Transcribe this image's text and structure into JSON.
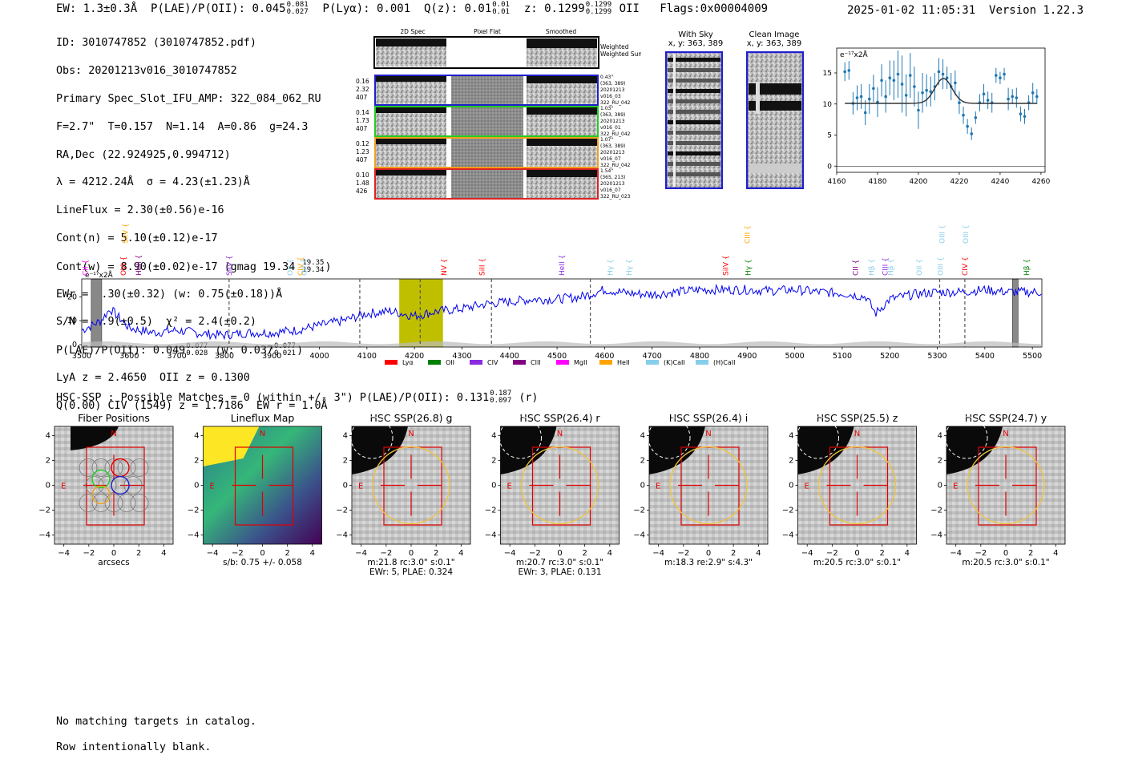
{
  "header": {
    "ew": "EW: 1.3±0.3Å",
    "plae_label": "P(LAE)/P(OII): 0.045",
    "plae_hi": "0.081",
    "plae_lo": "0.027",
    "plya": "P(Lyα): 0.001",
    "qz_label": "Q(z): 0.01",
    "qz_hi": "0.01",
    "qz_lo": "0.01",
    "z_label": "z: 0.1299",
    "z_hi": "0.1299",
    "z_lo": "0.1299",
    "z_line": "OII",
    "flags": "Flags:0x00004009",
    "timestamp": "2025-01-02 11:05:31",
    "version": "Version 1.22.3"
  },
  "info": {
    "id": "ID: 3010747852 (3010747852.pdf)",
    "obs": "Obs: 20201213v016_3010747852",
    "primary": "Primary Spec_Slot_IFU_AMP: 322_084_062_RU",
    "fwhm": "F=2.7\"  T=0.157  N=1.14  A=0.86  g=24.3",
    "radec": "RA,Dec (22.924925,0.994712)",
    "lambda": "λ = 4212.24Å  σ = 4.23(±1.23)Å",
    "lineflux": "LineFlux = 2.30(±0.56)e-16",
    "contn": "Cont(n) = 5.10(±0.12)e-17",
    "contw": "Cont(w) = 8.90(±0.02)e-17 (gmag 19.34",
    "contw_hi": "19.35",
    "contw_lo": "19.34",
    "ewr": "EWr = 1.30(±0.32) (w: 0.75(±0.18))Å",
    "sn": "S/N = 5.9(±0.5)  χ² = 2.4(±0.2)",
    "plae2": "P(LAE)/P(OII): 0.049",
    "plae2_hi": "0.077",
    "plae2_lo": "0.028",
    "plae2_w": "(w: 0.037",
    "plae2_w_hi": "0.077",
    "plae2_w_lo": "0.021",
    "lya": "LyA z = 2.4650  OII z = 0.1300",
    "q": "Q(0.00) CIV (1549) z = 1.7186  EW r = 1.0Å"
  },
  "cutouts": {
    "col1": "2D Spec",
    "col2": "Pixel Flat",
    "col3": "Smoothed",
    "weighted": "Weighted Sum",
    "rows": [
      {
        "v1": "0.16",
        "v2": "2.32",
        "v3": "407",
        "color": "#1f1fcc",
        "lab": [
          "0.43\"",
          "(363, 389)",
          "20201213",
          "v016_03",
          "322_RU_042"
        ]
      },
      {
        "v1": "0.14",
        "v2": "1.73",
        "v3": "407",
        "color": "#22cc22",
        "lab": [
          "1.03\"",
          "(363, 389)",
          "20201213",
          "v016_01",
          "322_RU_042"
        ]
      },
      {
        "v1": "0.12",
        "v2": "1.23",
        "v3": "407",
        "color": "#f0a020",
        "lab": [
          "1.07\"",
          "(363, 389)",
          "20201213",
          "v016_07",
          "322_RU_042"
        ]
      },
      {
        "v1": "0.10",
        "v2": "1.48",
        "v3": "426",
        "color": "#dd2222",
        "lab": [
          "1.54\"",
          "(365, 213)",
          "20201213",
          "v016_07",
          "322_RU_023"
        ]
      }
    ],
    "with_sky": "With Sky",
    "with_sky_xy": "x, y: 363, 389",
    "clean": "Clean Image",
    "clean_xy": "x, y: 363, 389"
  },
  "colors": {
    "spectrum": "#0000ee",
    "fit": "#333333",
    "zoom_points": "#1f77b4",
    "lya": "#ff0000",
    "oii": "#008000",
    "civ": "#8a2be2",
    "ciii": "#800080",
    "mgii": "#ff00ff",
    "heii": "#ffa500",
    "kcaii": "#87ceeb",
    "hcaii": "#87ceeb",
    "highlight": "#bfbf00"
  },
  "chart_data": [
    {
      "type": "scatter",
      "name": "zoom-spectrum",
      "ylabel": "e⁻¹⁷x2Å",
      "xlim": [
        4160,
        4262
      ],
      "ylim": [
        -1,
        19
      ],
      "xticks": [
        4160,
        4180,
        4200,
        4220,
        4240,
        4260
      ],
      "yticks": [
        0,
        5,
        10,
        15
      ],
      "x": [
        4164,
        4166,
        4168,
        4170,
        4172,
        4174,
        4176,
        4178,
        4180,
        4182,
        4184,
        4186,
        4188,
        4190,
        4192,
        4194,
        4196,
        4198,
        4200,
        4202,
        4204,
        4206,
        4208,
        4210,
        4212,
        4214,
        4216,
        4218,
        4220,
        4222,
        4224,
        4226,
        4228,
        4230,
        4232,
        4234,
        4236,
        4238,
        4240,
        4242,
        4244,
        4246,
        4248,
        4250,
        4252,
        4254,
        4256,
        4258
      ],
      "y": [
        15.2,
        15.4,
        10.1,
        11.0,
        11.2,
        8.6,
        10.8,
        12.5,
        10.3,
        13.8,
        11.2,
        14.2,
        13.8,
        14.8,
        13.2,
        11.4,
        14.6,
        12.8,
        9.0,
        11.8,
        12.2,
        12.0,
        12.8,
        15.2,
        14.8,
        14.2,
        12.8,
        13.4,
        10.2,
        8.2,
        6.4,
        5.2,
        7.8,
        10.2,
        11.6,
        10.6,
        10.2,
        14.6,
        14.2,
        14.8,
        10.8,
        11.2,
        11.0,
        8.4,
        8.0,
        10.2,
        11.8,
        11.2
      ],
      "yerr": [
        1.5,
        1.5,
        1.8,
        2,
        2,
        2,
        2.4,
        2.2,
        2.4,
        2.6,
        2.6,
        2.8,
        3.2,
        3.8,
        4.6,
        3.4,
        3.6,
        3.2,
        3.0,
        3.2,
        2.6,
        2.4,
        2.2,
        2.2,
        2.4,
        1.8,
        2.2,
        2.0,
        1.8,
        1.4,
        1.2,
        1.0,
        1.0,
        1.4,
        1.6,
        1.4,
        1.6,
        1.2,
        1.0,
        1.0,
        1.8,
        1.2,
        1.6,
        1.2,
        1.2,
        1.2,
        1.6,
        1.2
      ],
      "fit": {
        "continuum": 10.1,
        "amplitude": 4.0,
        "center": 4212.24,
        "sigma": 4.23
      }
    },
    {
      "type": "line",
      "name": "full-spectrum",
      "ylabel": "e⁻¹⁷x2Å",
      "xlim": [
        3500,
        5520
      ],
      "ylim": [
        -1,
        27.5
      ],
      "xticks": [
        3500,
        3600,
        3700,
        3800,
        3900,
        4000,
        4100,
        4200,
        4300,
        4400,
        4500,
        4600,
        4700,
        4800,
        4900,
        5000,
        5100,
        5200,
        5300,
        5400,
        5500
      ],
      "yticks": [
        0,
        10,
        20
      ],
      "anchors_x": [
        3500,
        3540,
        3560,
        3600,
        3650,
        3700,
        3760,
        3800,
        3850,
        3900,
        3950,
        4000,
        4050,
        4100,
        4150,
        4200,
        4250,
        4300,
        4350,
        4400,
        4450,
        4500,
        4550,
        4600,
        4650,
        4700,
        4750,
        4800,
        4850,
        4900,
        4950,
        5000,
        5050,
        5100,
        5150,
        5170,
        5180,
        5200,
        5250,
        5300,
        5350,
        5400,
        5450,
        5500,
        5520
      ],
      "anchors_y": [
        6,
        10,
        15,
        7,
        5,
        6,
        4.5,
        4,
        5,
        5,
        6,
        8,
        10,
        13,
        14,
        12,
        14,
        15,
        17,
        18,
        19,
        19,
        20,
        23,
        21.5,
        21,
        22,
        23,
        23,
        23,
        22.5,
        23,
        22,
        21.5,
        20,
        13,
        15,
        19,
        21,
        22,
        22,
        23,
        22,
        22,
        22
      ],
      "highlight": [
        4168,
        4260
      ],
      "shaded": [
        [
          3520,
          3542
        ],
        [
          5458,
          5470
        ]
      ],
      "dashed": [
        3810,
        4085,
        4212,
        4362,
        4570,
        5305,
        5358
      ],
      "legend": [
        "Lyα",
        "OII",
        "CIV",
        "CIII",
        "MgII",
        "HeII",
        "(K)CaII",
        "(H)CaII"
      ],
      "lines": [
        {
          "label": "CII",
          "x": 3508,
          "row": 2,
          "color": "#ff00ff"
        },
        {
          "label": "OVI",
          "x": 3588,
          "row": 2,
          "color": "#ff0000"
        },
        {
          "label": "SiIV",
          "x": 3592,
          "row": 0,
          "color": "#ffa500"
        },
        {
          "label": "HeII",
          "x": 3620,
          "row": 2,
          "color": "#800080"
        },
        {
          "label": "SiIV",
          "x": 3810,
          "row": 2,
          "color": "#8a2be2"
        },
        {
          "label": "OII",
          "x": 3938,
          "row": 2,
          "color": "#87ceeb"
        },
        {
          "label": "CIV",
          "x": 3960,
          "row": 2,
          "color": "#ffa500"
        },
        {
          "label": "OII",
          "x": 3968,
          "row": 2,
          "color": "#87ceeb"
        },
        {
          "label": "NV",
          "x": 4262,
          "row": 2,
          "color": "#ff0000"
        },
        {
          "label": "SiII",
          "x": 4342,
          "row": 2,
          "color": "#ff0000"
        },
        {
          "label": "HeII",
          "x": 4510,
          "row": 2,
          "color": "#8a2be2"
        },
        {
          "label": "Hγ",
          "x": 4612,
          "row": 2,
          "color": "#87ceeb"
        },
        {
          "label": "Hγ",
          "x": 4652,
          "row": 2,
          "color": "#87ceeb"
        },
        {
          "label": "SiIV",
          "x": 4855,
          "row": 2,
          "color": "#ff0000"
        },
        {
          "label": "CIII",
          "x": 4900,
          "row": 0,
          "color": "#ffa500"
        },
        {
          "label": "Hγ",
          "x": 4902,
          "row": 2,
          "color": "#008000"
        },
        {
          "label": "CII",
          "x": 5128,
          "row": 2,
          "color": "#800080"
        },
        {
          "label": "Hβ",
          "x": 5162,
          "row": 2,
          "color": "#87ceeb"
        },
        {
          "label": "CIII",
          "x": 5190,
          "row": 2,
          "color": "#8a2be2"
        },
        {
          "label": "Hβ",
          "x": 5202,
          "row": 2,
          "color": "#87ceeb"
        },
        {
          "label": "OII",
          "x": 5262,
          "row": 2,
          "color": "#87ceeb"
        },
        {
          "label": "OIII",
          "x": 5307,
          "row": 2,
          "color": "#87ceeb"
        },
        {
          "label": "OIII",
          "x": 5310,
          "row": 0,
          "color": "#87ceeb"
        },
        {
          "label": "CIV",
          "x": 5358,
          "row": 2,
          "color": "#ff0000"
        },
        {
          "label": "OIII",
          "x": 5360,
          "row": 0,
          "color": "#87ceeb"
        },
        {
          "label": "Hβ",
          "x": 5488,
          "row": 2,
          "color": "#008000"
        }
      ]
    }
  ],
  "hsc": {
    "title": "HSC-SSP : Possible Matches = 0 (within +/- 3\")  P(LAE)/P(OII): 0.131",
    "title_hi": "0.187",
    "title_lo": "0.097",
    "title_band": "(r)",
    "ticks": [
      "−4",
      "−2",
      "0",
      "2",
      "4"
    ],
    "panels": [
      {
        "title": "Fiber Positions",
        "cap1": "arcsecs",
        "cap2": ""
      },
      {
        "title": "Lineflux Map",
        "cap1": "s/b: 0.75 +/- 0.058",
        "cap2": ""
      },
      {
        "title": "HSC SSP(26.8) g",
        "cap1": "m:21.8 rc:3.0\"  s:0.1\"",
        "cap2": "EWr: 5, PLAE: 0.324"
      },
      {
        "title": "HSC SSP(26.4) r",
        "cap1": "m:20.7 rc:3.0\"  s:0.1\"",
        "cap2": "EWr: 3, PLAE: 0.131"
      },
      {
        "title": "HSC SSP(26.4) i",
        "cap1": "m:18.3  re:2.9\"  s:4.3\"",
        "cap2": ""
      },
      {
        "title": "HSC SSP(25.5) z",
        "cap1": "m:20.5 rc:3.0\"  s:0.1\"",
        "cap2": ""
      },
      {
        "title": "HSC SSP(24.7) y",
        "cap1": "m:20.5 rc:3.0\"  s:0.1\"",
        "cap2": ""
      }
    ],
    "n_label": "N",
    "e_label": "E"
  },
  "footer": {
    "line1": "No matching targets in catalog.",
    "line2": "Row intentionally blank."
  }
}
